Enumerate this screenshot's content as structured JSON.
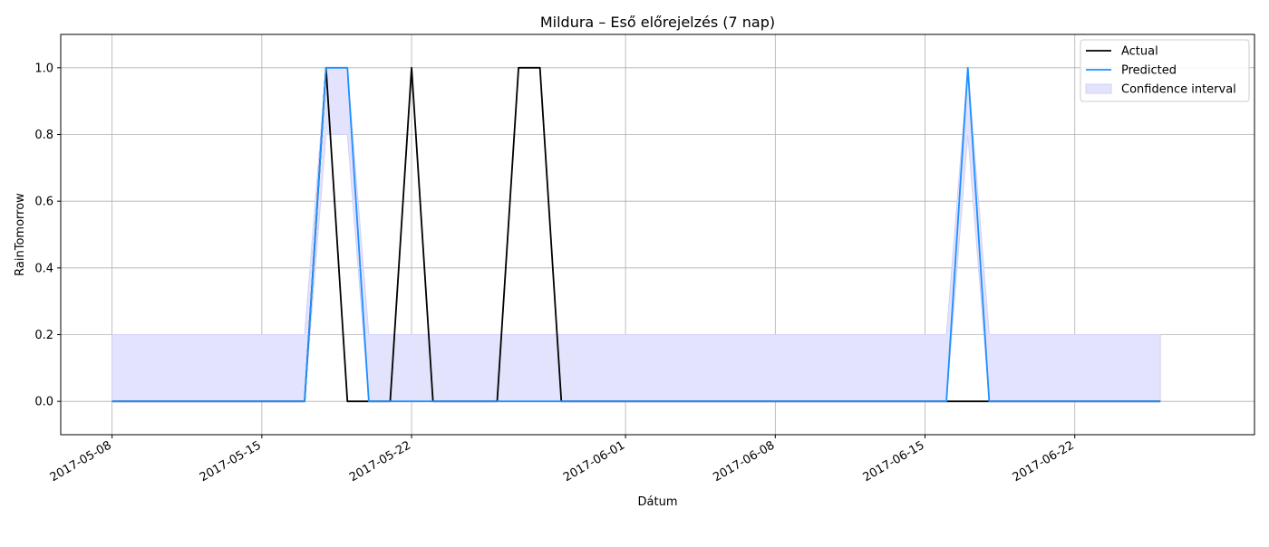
{
  "chart_data": {
    "type": "line",
    "title": "Mildura – Eső előrejelzés (7 nap)",
    "xlabel": "Dátum",
    "ylabel": "RainTomorrow",
    "x_range": [
      "2017-05-05T14:24",
      "2017-06-30T09:36"
    ],
    "ylim": [
      -0.1,
      1.1
    ],
    "x_ticks": [
      "2017-05-08",
      "2017-05-15",
      "2017-05-22",
      "2017-06-01",
      "2017-06-08",
      "2017-06-15",
      "2017-06-22"
    ],
    "y_ticks": [
      "0.0",
      "0.2",
      "0.4",
      "0.6",
      "0.8",
      "1.0"
    ],
    "grid": true,
    "legend_position": "top-right",
    "legend": [
      "Actual",
      "Predicted",
      "Confidence interval"
    ],
    "colors": {
      "actual": "#000000",
      "predicted": "#1e90ff",
      "ci_fill": "#e3e3fd",
      "ci_edge": "#d0d0f7",
      "grid": "#b0b0b0"
    },
    "series": [
      {
        "name": "Actual",
        "points": [
          [
            "2017-05-08",
            0
          ],
          [
            "2017-05-17",
            0
          ],
          [
            "2017-05-18",
            1
          ],
          [
            "2017-05-19",
            0
          ],
          [
            "2017-05-21",
            0
          ],
          [
            "2017-05-22",
            1
          ],
          [
            "2017-05-23",
            0
          ],
          [
            "2017-05-26",
            0
          ],
          [
            "2017-05-27",
            1
          ],
          [
            "2017-05-28",
            1
          ],
          [
            "2017-05-29",
            0
          ],
          [
            "2017-06-26",
            0
          ]
        ]
      },
      {
        "name": "Predicted",
        "points": [
          [
            "2017-05-08",
            0
          ],
          [
            "2017-05-17",
            0
          ],
          [
            "2017-05-18",
            1
          ],
          [
            "2017-05-19",
            1
          ],
          [
            "2017-05-20",
            0
          ],
          [
            "2017-06-16",
            0
          ],
          [
            "2017-06-17",
            1
          ],
          [
            "2017-06-18",
            0
          ],
          [
            "2017-06-26",
            0
          ]
        ]
      }
    ],
    "confidence_interval": {
      "name": "Confidence interval",
      "upper": [
        [
          "2017-05-08",
          0.2
        ],
        [
          "2017-05-17",
          0.2
        ],
        [
          "2017-05-18",
          1.0
        ],
        [
          "2017-05-19",
          1.0
        ],
        [
          "2017-05-20",
          0.2
        ],
        [
          "2017-06-16",
          0.2
        ],
        [
          "2017-06-17",
          1.0
        ],
        [
          "2017-06-18",
          0.2
        ],
        [
          "2017-06-26",
          0.2
        ]
      ],
      "lower": [
        [
          "2017-05-08",
          0.0
        ],
        [
          "2017-05-17",
          0.0
        ],
        [
          "2017-05-18",
          0.8
        ],
        [
          "2017-05-19",
          0.8
        ],
        [
          "2017-05-20",
          0.0
        ],
        [
          "2017-06-16",
          0.0
        ],
        [
          "2017-06-17",
          0.8
        ],
        [
          "2017-06-18",
          0.0
        ],
        [
          "2017-06-26",
          0.0
        ]
      ]
    }
  }
}
